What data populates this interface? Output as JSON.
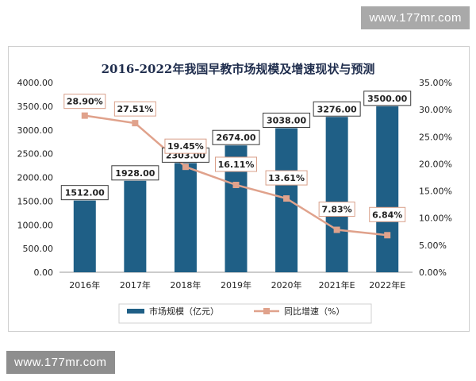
{
  "watermark_top": "www.177mr.com",
  "watermark_bottom": "www.177mr.com",
  "colors": {
    "bar": "#1f5f86",
    "line": "#e0a28c",
    "label_border": "#d9a08a"
  },
  "chart_data": {
    "type": "bar",
    "title": "2016-2022年我国早教市场规模及增速现状与预测",
    "categories": [
      "2016年",
      "2017年",
      "2018年",
      "2019年",
      "2020年",
      "2021年E",
      "2022年E"
    ],
    "series": [
      {
        "name": "市场规模（亿元）",
        "type": "bar",
        "axis": "left",
        "values": [
          1512.0,
          1928.0,
          2303.0,
          2674.0,
          3038.0,
          3276.0,
          3500.0
        ],
        "labels": [
          "1512.00",
          "1928.00",
          "2303.00",
          "2674.00",
          "3038.00",
          "3276.00",
          "3500.00"
        ]
      },
      {
        "name": "同比增速（%）",
        "type": "line",
        "axis": "right",
        "values": [
          28.9,
          27.51,
          19.45,
          16.11,
          13.61,
          7.83,
          6.84
        ],
        "labels": [
          "28.90%",
          "27.51%",
          "19.45%",
          "16.11%",
          "13.61%",
          "7.83%",
          "6.84%"
        ]
      }
    ],
    "y_left": {
      "min": 0,
      "max": 4000,
      "step": 500,
      "ticks": [
        "0.00",
        "500.00",
        "1000.00",
        "1500.00",
        "2000.00",
        "2500.00",
        "3000.00",
        "3500.00",
        "4000.00"
      ]
    },
    "y_right": {
      "min": 0,
      "max": 35,
      "step": 5,
      "ticks": [
        "0.00%",
        "5.00%",
        "10.00%",
        "15.00%",
        "20.00%",
        "25.00%",
        "30.00%",
        "35.00%"
      ]
    },
    "legend_position": "bottom",
    "grid": false
  }
}
